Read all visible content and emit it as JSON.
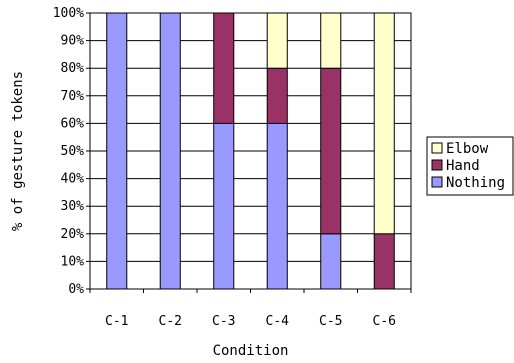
{
  "chart_data": {
    "type": "bar",
    "stacked": true,
    "title": "",
    "xlabel": "Condition",
    "ylabel": "% of gesture tokens",
    "categories": [
      "C-1",
      "C-2",
      "C-3",
      "C-4",
      "C-5",
      "C-6"
    ],
    "ylim": [
      0,
      100
    ],
    "yticks": [
      "0%",
      "10%",
      "20%",
      "30%",
      "40%",
      "50%",
      "60%",
      "70%",
      "80%",
      "90%",
      "100%"
    ],
    "grid": true,
    "legend_position": "right",
    "series": [
      {
        "name": "Nothing",
        "color": "#9999ff",
        "values": [
          100,
          100,
          60,
          60,
          20,
          0
        ]
      },
      {
        "name": "Hand",
        "color": "#993366",
        "values": [
          0,
          0,
          40,
          20,
          60,
          20
        ]
      },
      {
        "name": "Elbow",
        "color": "#ffffcc",
        "values": [
          0,
          0,
          0,
          20,
          20,
          80
        ]
      }
    ],
    "legend_order": [
      "Elbow",
      "Hand",
      "Nothing"
    ]
  }
}
